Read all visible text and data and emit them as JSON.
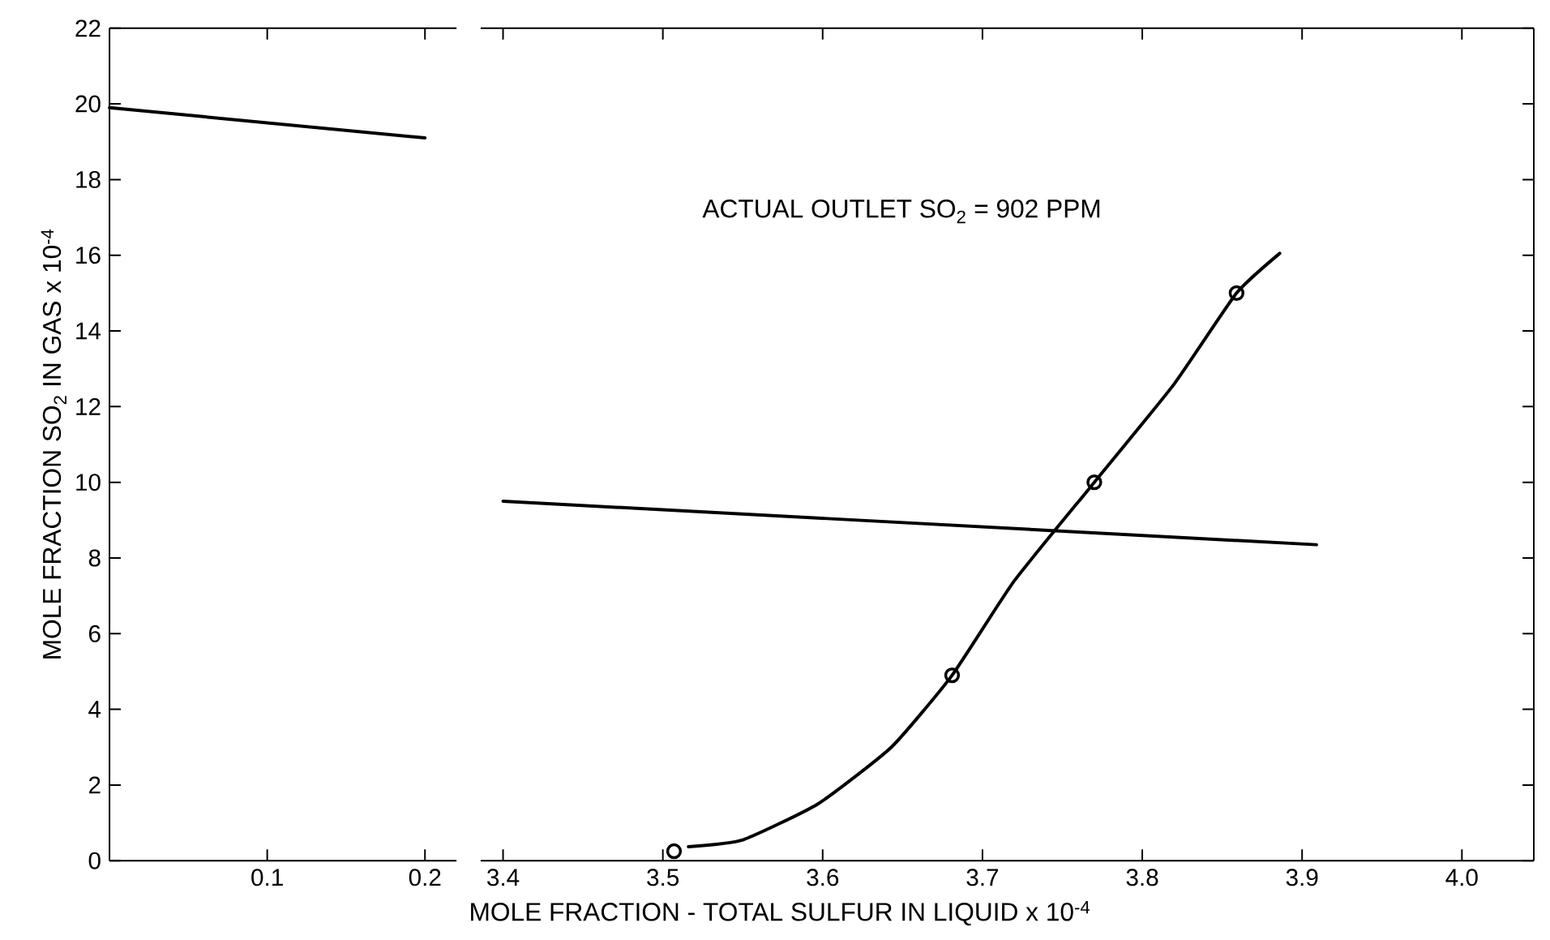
{
  "chart_data": [
    {
      "type": "line",
      "ylabel": "MOLE FRACTION SO$_{2}$ IN GAS x 10$^{-4}$",
      "xlim": [
        0,
        0.22
      ],
      "xticks": [
        0.1,
        0.2
      ],
      "ylim": [
        0,
        22
      ],
      "yticks": [
        0,
        2,
        4,
        6,
        8,
        10,
        12,
        14,
        16,
        18,
        20,
        22
      ],
      "series": [
        {
          "color": "#000000",
          "x": [
            0,
            0.2
          ],
          "values": [
            19.9,
            19.1
          ]
        }
      ]
    },
    {
      "type": "line",
      "xlabel": "MOLE FRACTION - TOTAL SULFUR IN LIQUID x 10$^{-4}$",
      "annotations": [
        "ACTUAL OUTLET SO$_{2}$ = 902 PPM"
      ],
      "xlim": [
        3.386,
        4.045
      ],
      "xticks": [
        3.4,
        3.5,
        3.6,
        3.7,
        3.8,
        3.9,
        {
          "value": 4,
          "label": "4.0"
        }
      ],
      "ylim": [
        0,
        22
      ],
      "yticks": [
        0,
        2,
        4,
        6,
        8,
        10,
        12,
        14,
        16,
        18,
        20,
        22
      ],
      "tick_labels": "x",
      "series": [
        {
          "color": "#000000",
          "x": [
            3.4,
            3.909
          ],
          "values": [
            9.5,
            8.35
          ]
        },
        {
          "color": "#000000",
          "x": [
            3.516,
            3.55,
            3.597,
            3.643,
            3.681,
            3.72,
            3.77,
            3.82,
            3.859,
            3.886
          ],
          "values": [
            0.37,
            0.55,
            1.5,
            3.0,
            4.9,
            7.4,
            10.0,
            12.6,
            15.0,
            16.05
          ]
        },
        {
          "type": "scatter",
          "marker": "circle",
          "color": "#000000",
          "x": [
            3.507,
            3.681,
            3.77,
            3.859
          ],
          "values": [
            0.25,
            4.9,
            10.0,
            15.0
          ]
        }
      ]
    }
  ]
}
